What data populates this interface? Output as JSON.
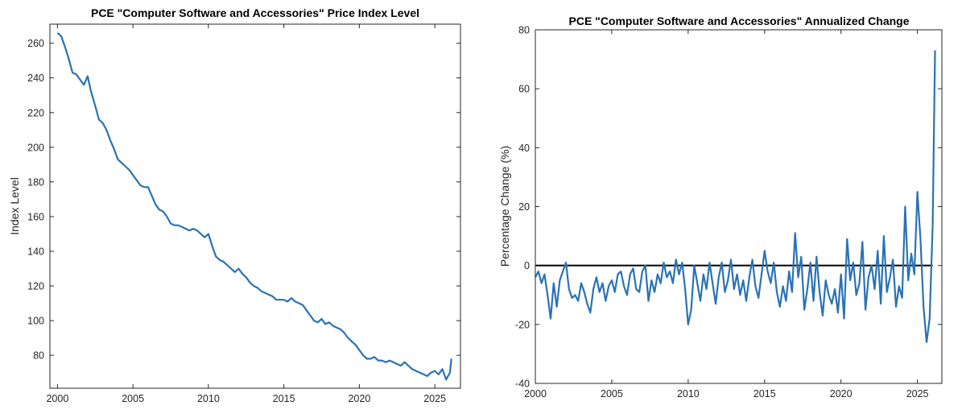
{
  "colors": {
    "series": "#2a72b5",
    "zero_line": "#000000",
    "axis": "#262626"
  },
  "chart_data": [
    {
      "type": "line",
      "title": "PCE \"Computer Software and Accessories\" Price Index Level",
      "xlabel": "",
      "ylabel": "Index Level",
      "xlim": [
        1999.5,
        2026.7
      ],
      "ylim": [
        61,
        271
      ],
      "x_ticks": [
        2000,
        2005,
        2010,
        2015,
        2020,
        2025
      ],
      "y_ticks": [
        80,
        100,
        120,
        140,
        160,
        180,
        200,
        220,
        240,
        260
      ],
      "grid": false,
      "legend": "none",
      "series": [
        {
          "x": [
            2000.0,
            2000.25,
            2000.5,
            2000.75,
            2001.0,
            2001.25,
            2001.5,
            2001.75,
            2002.0,
            2002.2,
            2002.5,
            2002.75,
            2003.0,
            2003.25,
            2003.5,
            2003.75,
            2004.0,
            2004.25,
            2004.5,
            2004.75,
            2005.0,
            2005.25,
            2005.5,
            2005.75,
            2006.0,
            2006.25,
            2006.5,
            2006.75,
            2007.0,
            2007.25,
            2007.5,
            2007.75,
            2008.0,
            2008.25,
            2008.5,
            2008.75,
            2009.0,
            2009.25,
            2009.5,
            2009.75,
            2010.0,
            2010.25,
            2010.5,
            2010.75,
            2011.0,
            2011.25,
            2011.5,
            2011.75,
            2012.0,
            2012.25,
            2012.5,
            2012.75,
            2013.0,
            2013.25,
            2013.5,
            2013.75,
            2014.0,
            2014.25,
            2014.5,
            2014.75,
            2015.0,
            2015.25,
            2015.5,
            2015.75,
            2016.0,
            2016.25,
            2016.5,
            2016.75,
            2017.0,
            2017.25,
            2017.5,
            2017.75,
            2018.0,
            2018.25,
            2018.5,
            2018.75,
            2019.0,
            2019.25,
            2019.5,
            2019.75,
            2020.0,
            2020.25,
            2020.5,
            2020.75,
            2021.0,
            2021.25,
            2021.5,
            2021.75,
            2022.0,
            2022.25,
            2022.5,
            2022.75,
            2023.0,
            2023.25,
            2023.5,
            2023.75,
            2024.0,
            2024.25,
            2024.5,
            2024.75,
            2025.0,
            2025.25,
            2025.5,
            2025.75,
            2026.0,
            2026.1
          ],
          "values": [
            266,
            264,
            258,
            251,
            243,
            242,
            239,
            236,
            241,
            233,
            224,
            216,
            214,
            210,
            204,
            199,
            193,
            191,
            189,
            187,
            184,
            181,
            178,
            177,
            177,
            172,
            167,
            164,
            163,
            160,
            156,
            155,
            155,
            154,
            153,
            152,
            153,
            152,
            150,
            148,
            150,
            143,
            137,
            135,
            134,
            132,
            130,
            128,
            130,
            127,
            125,
            122,
            120,
            119,
            117,
            116,
            115,
            114,
            112,
            112,
            112,
            111,
            113,
            111,
            110,
            109,
            106,
            103,
            100,
            99,
            101,
            98,
            99,
            97,
            96,
            95,
            93,
            90,
            88,
            86,
            83,
            80,
            78,
            78,
            79,
            77,
            77,
            76,
            77,
            76,
            75,
            74,
            76,
            74,
            72,
            71,
            70,
            69,
            68,
            70,
            71,
            69,
            72,
            66,
            70,
            78
          ]
        }
      ]
    },
    {
      "type": "line",
      "title": "PCE \"Computer Software and Accessories\" Annualized Change",
      "xlabel": "",
      "ylabel": "Percentage Change (%)",
      "xlim": [
        2000,
        2026.6
      ],
      "ylim": [
        -40,
        80
      ],
      "x_ticks": [
        2000,
        2005,
        2010,
        2015,
        2020,
        2025
      ],
      "y_ticks": [
        -40,
        -20,
        0,
        20,
        40,
        60,
        80
      ],
      "grid": false,
      "legend": "none",
      "reference_line": 0,
      "series": [
        {
          "x": [
            2000.0,
            2000.2,
            2000.4,
            2000.6,
            2000.8,
            2001.0,
            2001.2,
            2001.4,
            2001.6,
            2001.8,
            2002.0,
            2002.2,
            2002.4,
            2002.6,
            2002.8,
            2003.0,
            2003.2,
            2003.4,
            2003.6,
            2003.8,
            2004.0,
            2004.2,
            2004.4,
            2004.6,
            2004.8,
            2005.0,
            2005.2,
            2005.4,
            2005.6,
            2005.8,
            2006.0,
            2006.2,
            2006.4,
            2006.6,
            2006.8,
            2007.0,
            2007.2,
            2007.4,
            2007.6,
            2007.8,
            2008.0,
            2008.2,
            2008.4,
            2008.6,
            2008.8,
            2009.0,
            2009.2,
            2009.4,
            2009.6,
            2009.8,
            2010.0,
            2010.2,
            2010.4,
            2010.6,
            2010.8,
            2011.0,
            2011.2,
            2011.4,
            2011.6,
            2011.8,
            2012.0,
            2012.2,
            2012.4,
            2012.6,
            2012.8,
            2013.0,
            2013.2,
            2013.4,
            2013.6,
            2013.8,
            2014.0,
            2014.2,
            2014.4,
            2014.6,
            2014.8,
            2015.0,
            2015.2,
            2015.4,
            2015.6,
            2015.8,
            2016.0,
            2016.2,
            2016.4,
            2016.6,
            2016.8,
            2017.0,
            2017.2,
            2017.4,
            2017.6,
            2017.8,
            2018.0,
            2018.2,
            2018.4,
            2018.6,
            2018.8,
            2019.0,
            2019.2,
            2019.4,
            2019.6,
            2019.8,
            2020.0,
            2020.2,
            2020.4,
            2020.6,
            2020.8,
            2021.0,
            2021.2,
            2021.4,
            2021.6,
            2021.8,
            2022.0,
            2022.2,
            2022.4,
            2022.6,
            2022.8,
            2023.0,
            2023.2,
            2023.4,
            2023.6,
            2023.8,
            2024.0,
            2024.2,
            2024.4,
            2024.6,
            2024.8,
            2025.0,
            2025.2,
            2025.4,
            2025.6,
            2025.8,
            2026.0,
            2026.15
          ],
          "values": [
            -4,
            -2,
            -6,
            -3,
            -10,
            -18,
            -6,
            -14,
            -5,
            -2,
            1,
            -8,
            -11,
            -10,
            -12,
            -6,
            -9,
            -13,
            -16,
            -8,
            -4,
            -9,
            -6,
            -12,
            -7,
            -5,
            -9,
            -3,
            -2,
            -7,
            -10,
            -3,
            -1,
            -8,
            -9,
            -2,
            0,
            -12,
            -5,
            -9,
            -3,
            -6,
            1,
            -4,
            -2,
            -6,
            2,
            -3,
            1,
            -8,
            -20,
            -15,
            0,
            -6,
            -12,
            -3,
            -8,
            1,
            -6,
            -13,
            -4,
            1,
            -9,
            -5,
            2,
            -8,
            -3,
            -10,
            -5,
            -12,
            -4,
            2,
            -7,
            -11,
            -3,
            5,
            -2,
            -6,
            1,
            -9,
            -14,
            -7,
            -12,
            -2,
            -9,
            11,
            -4,
            3,
            -15,
            -8,
            1,
            -12,
            3,
            -9,
            -17,
            -5,
            -10,
            -13,
            -8,
            -16,
            -3,
            -18,
            9,
            -5,
            1,
            -10,
            -6,
            8,
            -15,
            -4,
            0,
            -8,
            5,
            -13,
            10,
            -9,
            -4,
            2,
            -14,
            -7,
            -11,
            20,
            -5,
            4,
            -3,
            25,
            9,
            -14,
            -26,
            -18,
            14,
            73
          ]
        }
      ]
    }
  ]
}
